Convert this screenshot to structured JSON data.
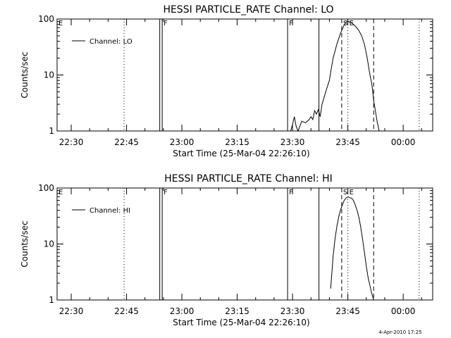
{
  "footer": {
    "timestamp": "4-Apr-2010 17:25"
  },
  "chart_data": [
    {
      "type": "line",
      "title": "HESSI PARTICLE_RATE Channel: LO",
      "xlabel": "Start Time (25-Mar-04 22:26:10)",
      "ylabel": "Counts/sec",
      "y_scale": "log",
      "ylim": [
        1,
        100
      ],
      "xlim": [
        "22:26:10",
        "00:08:00"
      ],
      "x_ticks": [
        "22:30",
        "22:45",
        "23:00",
        "23:15",
        "23:30",
        "23:45",
        "00:00"
      ],
      "y_ticks": [
        "1",
        "10",
        "100"
      ],
      "grid": false,
      "legend": {
        "position": "top-left",
        "entries": [
          "Channel: LO"
        ]
      },
      "markers": [
        {
          "time": "22:26:10",
          "label": "E",
          "style": "none"
        },
        {
          "time": "22:44:20",
          "label": "",
          "style": "dotted"
        },
        {
          "time": "22:54:00",
          "label": "",
          "style": "solid"
        },
        {
          "time": "22:54:40",
          "label": "F",
          "style": "solid"
        },
        {
          "time": "23:28:40",
          "label": "F",
          "style": "solid"
        },
        {
          "time": "23:37:10",
          "label": "",
          "style": "solid"
        },
        {
          "time": "23:43:20",
          "label": "S",
          "style": "dashed"
        },
        {
          "time": "23:45:00",
          "label": "E",
          "style": "dotted"
        },
        {
          "time": "23:52:00",
          "label": "",
          "style": "dashed"
        },
        {
          "time": "00:04:20",
          "label": "",
          "style": "dotted"
        }
      ],
      "series": [
        {
          "name": "Channel: LO",
          "x": [
            "23:29:30",
            "23:30:00",
            "23:30:30",
            "23:31:00",
            "23:31:30",
            "23:32:30",
            "23:33:30",
            "23:34:30",
            "23:35:00",
            "23:35:30",
            "23:36:00",
            "23:36:30",
            "23:37:00",
            "23:37:30",
            "23:38:00",
            "23:39:00",
            "23:40:00",
            "23:40:30",
            "23:41:00",
            "23:42:00",
            "23:43:00",
            "23:44:00",
            "23:44:30",
            "23:45:00",
            "23:45:30",
            "23:46:00",
            "23:47:00",
            "23:48:00",
            "23:48:45",
            "23:49:30",
            "23:50:15",
            "23:51:00",
            "23:51:30",
            "23:52:00",
            "23:52:30",
            "23:53:00",
            "23:53:30"
          ],
          "values": [
            1,
            1.3,
            1.8,
            1.2,
            1,
            1.5,
            1.4,
            1.6,
            1.8,
            1.6,
            2.3,
            2.0,
            2.4,
            1.8,
            3.0,
            5.0,
            8.0,
            13,
            20,
            35,
            55,
            78,
            88,
            92,
            88,
            85,
            75,
            62,
            50,
            35,
            20,
            10,
            7,
            3.5,
            2.2,
            1.4,
            1
          ]
        }
      ]
    },
    {
      "type": "line",
      "title": "HESSI PARTICLE_RATE Channel: HI",
      "xlabel": "Start Time (25-Mar-04 22:26:10)",
      "ylabel": "Counts/sec",
      "y_scale": "log",
      "ylim": [
        1,
        100
      ],
      "xlim": [
        "22:26:10",
        "00:08:00"
      ],
      "x_ticks": [
        "22:30",
        "22:45",
        "23:00",
        "23:15",
        "23:30",
        "23:45",
        "00:00"
      ],
      "y_ticks": [
        "1",
        "10",
        "100"
      ],
      "grid": false,
      "legend": {
        "position": "top-left",
        "entries": [
          "Channel: HI"
        ]
      },
      "markers": [
        {
          "time": "22:26:10",
          "label": "E",
          "style": "none"
        },
        {
          "time": "22:44:20",
          "label": "",
          "style": "dotted"
        },
        {
          "time": "22:54:00",
          "label": "",
          "style": "solid"
        },
        {
          "time": "22:54:40",
          "label": "F",
          "style": "solid"
        },
        {
          "time": "23:28:40",
          "label": "F",
          "style": "solid"
        },
        {
          "time": "23:37:10",
          "label": "",
          "style": "solid"
        },
        {
          "time": "23:43:20",
          "label": "S",
          "style": "dashed"
        },
        {
          "time": "23:45:00",
          "label": "E",
          "style": "dotted"
        },
        {
          "time": "23:52:00",
          "label": "",
          "style": "dashed"
        },
        {
          "time": "00:04:20",
          "label": "",
          "style": "dotted"
        }
      ],
      "series": [
        {
          "name": "Channel: HI",
          "x": [
            "23:40:20",
            "23:40:40",
            "23:41:00",
            "23:41:30",
            "23:42:00",
            "23:42:30",
            "23:43:00",
            "23:43:30",
            "23:44:00",
            "23:44:30",
            "23:45:00",
            "23:45:30",
            "23:46:00",
            "23:46:30",
            "23:47:00",
            "23:47:30",
            "23:48:00",
            "23:48:30",
            "23:49:00",
            "23:49:30",
            "23:50:00",
            "23:50:30",
            "23:51:00",
            "23:51:30",
            "23:52:00"
          ],
          "values": [
            1.6,
            3,
            6,
            12,
            20,
            30,
            40,
            50,
            60,
            66,
            70,
            67,
            66,
            60,
            50,
            40,
            30,
            20,
            12,
            7,
            4,
            2.5,
            1.8,
            1.3,
            1
          ]
        }
      ]
    }
  ]
}
